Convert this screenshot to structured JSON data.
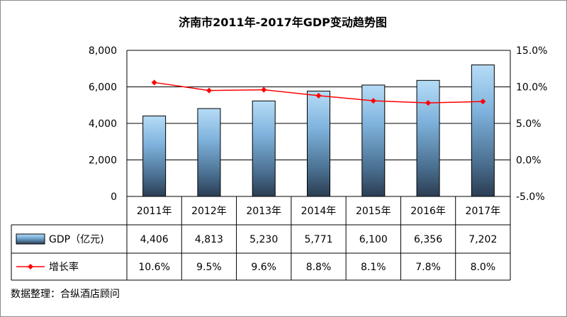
{
  "chart_data": {
    "type": "bar",
    "title": "济南市2011年-2017年GDP变动趋势图",
    "categories": [
      "2011年",
      "2012年",
      "2013年",
      "2014年",
      "2015年",
      "2016年",
      "2017年"
    ],
    "series": [
      {
        "name": "GDP（亿元)",
        "type": "bar",
        "axis": "left",
        "values": [
          4406,
          4813,
          5230,
          5771,
          6100,
          6356,
          7202
        ],
        "labels": [
          "4,406",
          "4,813",
          "5,230",
          "5,771",
          "6,100",
          "6,356",
          "7,202"
        ],
        "color": "#5b9bd5"
      },
      {
        "name": "增长率",
        "type": "line",
        "axis": "right",
        "values": [
          10.6,
          9.5,
          9.6,
          8.8,
          8.1,
          7.8,
          8.0
        ],
        "labels": [
          "10.6%",
          "9.5%",
          "9.6%",
          "8.8%",
          "8.1%",
          "7.8%",
          "8.0%"
        ],
        "color": "#ff0000"
      }
    ],
    "y_left": {
      "min": 0,
      "max": 8000,
      "ticks": [
        0,
        2000,
        4000,
        6000,
        8000
      ],
      "tick_labels": [
        "0",
        "2,000",
        "4,000",
        "6,000",
        "8,000"
      ]
    },
    "y_right": {
      "min": -5,
      "max": 15,
      "ticks": [
        -5,
        0,
        5,
        10,
        15
      ],
      "tick_labels": [
        "-5.0%",
        "0.0%",
        "5.0%",
        "10.0%",
        "15.0%"
      ]
    },
    "grid": true,
    "legend": "data-table",
    "source": "数据整理：合纵酒店顾问"
  }
}
